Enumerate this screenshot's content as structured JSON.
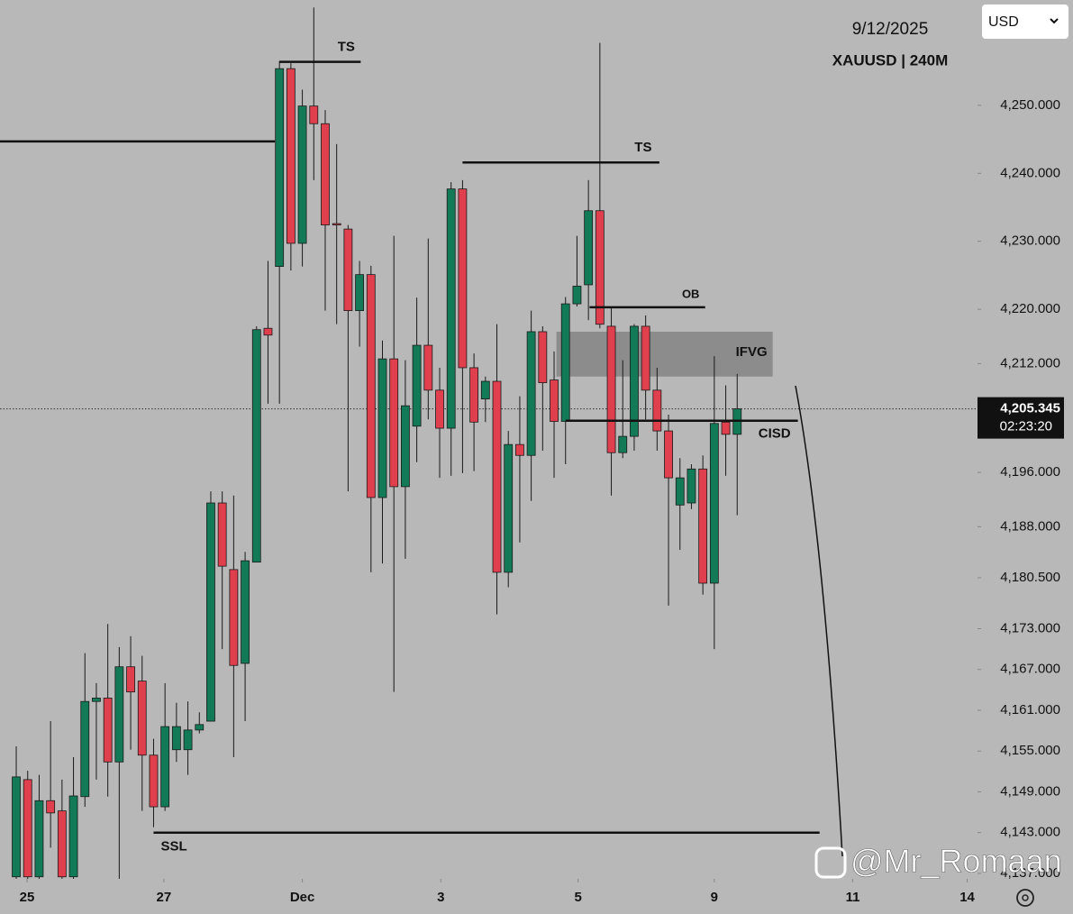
{
  "chart_data": {
    "type": "candlestick",
    "header_date": "9/12/2025",
    "symbol": "XAUUSD | 240M",
    "currency": "USD",
    "watermark": "@Mr_Romaan",
    "up_color": "#137a57",
    "down_color": "#e0404e",
    "open": [
      4136.5,
      4150.8,
      4136.5,
      4147.7,
      4146.2,
      4136.5,
      4148.3,
      4162.3,
      4162.8,
      4153.4,
      4167.4,
      4165.3,
      4154.4,
      4146.8,
      4155.2,
      4155.2,
      4158.1,
      4159.4,
      4191.5,
      4181.7,
      4167.9,
      4182.8,
      4217.2,
      4226.3,
      4255.4,
      4229.7,
      4249.9,
      4247.3,
      4232.6,
      4231.8,
      4219.8,
      4225.1,
      4192.3,
      4212.7,
      4193.9,
      4202.8,
      4214.7,
      4208.1,
      4202.5,
      4237.7,
      4211.4,
      4206.8,
      4209.4,
      4181.3,
      4200.1,
      4198.5,
      4216.7,
      4209.6,
      4203.5,
      4220.8,
      4223.6,
      4234.5,
      4217.5,
      4198.9,
      4201.3,
      4217.5,
      4208.1,
      4202.1,
      4191.2,
      4191.5,
      4196.5,
      4179.7,
      4203.4,
      4201.6
    ],
    "high": [
      4155.7,
      4152.1,
      4151.5,
      4159.4,
      4150.8,
      4154.1,
      4169.4,
      4165.0,
      4173.7,
      4170.3,
      4171.9,
      4169.0,
      4156.8,
      4165.0,
      4162.1,
      4162.3,
      4160.7,
      4193.2,
      4193.2,
      4192.6,
      4184.3,
      4217.5,
      4227.1,
      4256.5,
      4256.2,
      4252.3,
      4264.4,
      4249.3,
      4244.3,
      4232.4,
      4227.1,
      4226.4,
      4215.4,
      4230.8,
      4212.5,
      4221.7,
      4230.4,
      4211.4,
      4238.7,
      4239.0,
      4213.5,
      4210.1,
      4217.8,
      4202.1,
      4207.2,
      4219.8,
      4217.5,
      4213.8,
      4221.8,
      4230.8,
      4239.0,
      4259.2,
      4220.2,
      4212.5,
      4217.8,
      4219.1,
      4211.4,
      4204.5,
      4198.1,
      4197.2,
      4198.5,
      4213.1,
      4208.8,
      4210.5
    ],
    "low": [
      4136.2,
      4136.2,
      4136.2,
      4140.8,
      4136.2,
      4136.2,
      4146.8,
      4150.8,
      4148.3,
      4136.2,
      4155.2,
      4146.2,
      4143.8,
      4146.2,
      4153.4,
      4151.5,
      4157.6,
      4159.4,
      4170.0,
      4154.1,
      4159.4,
      4182.8,
      4206.1,
      4206.1,
      4225.7,
      4226.3,
      4239.0,
      4219.8,
      4217.8,
      4193.2,
      4214.5,
      4181.3,
      4182.6,
      4163.7,
      4183.3,
      4197.5,
      4203.8,
      4195.2,
      4195.5,
      4195.9,
      4196.2,
      4203.4,
      4175.1,
      4179.1,
      4185.7,
      4191.8,
      4199.2,
      4195.2,
      4197.2,
      4220.4,
      4218.4,
      4217.2,
      4192.6,
      4198.1,
      4199.2,
      4203.8,
      4199.2,
      4176.4,
      4184.6,
      4190.6,
      4178.0,
      4170.0,
      4195.5,
      4189.7
    ],
    "close": [
      4151.2,
      4136.5,
      4147.7,
      4145.9,
      4136.5,
      4148.4,
      4162.3,
      4162.8,
      4153.4,
      4167.4,
      4163.7,
      4154.4,
      4146.8,
      4158.6,
      4158.6,
      4158.1,
      4158.9,
      4191.5,
      4182.2,
      4167.6,
      4183.0,
      4217.0,
      4216.2,
      4255.4,
      4229.7,
      4249.9,
      4247.3,
      4232.4,
      4232.4,
      4219.8,
      4225.1,
      4192.3,
      4212.7,
      4193.9,
      4205.8,
      4214.7,
      4208.1,
      4202.5,
      4237.7,
      4211.4,
      4203.4,
      4209.4,
      4181.3,
      4200.1,
      4198.5,
      4216.7,
      4209.2,
      4203.5,
      4220.8,
      4223.4,
      4234.5,
      4217.8,
      4198.9,
      4201.3,
      4217.5,
      4208.1,
      4202.1,
      4195.2,
      4195.2,
      4196.5,
      4179.7,
      4203.2,
      4201.6,
      4205.345
    ],
    "xlim": [
      -1.42,
      84.0
    ],
    "xticks": [
      {
        "value": 0.94,
        "label": "25"
      },
      {
        "value": 12.9,
        "label": "27"
      },
      {
        "value": 25.0,
        "label": "Dec"
      },
      {
        "value": 37.1,
        "label": "3"
      },
      {
        "value": 49.1,
        "label": "5"
      },
      {
        "value": 61.0,
        "label": "9"
      },
      {
        "value": 73.1,
        "label": "11"
      },
      {
        "value": 83.1,
        "label": "14"
      }
    ],
    "ylim": [
      4136.2,
      4265.5
    ],
    "yticks": [
      {
        "value": 4250,
        "label": "4,250.000"
      },
      {
        "value": 4240,
        "label": "4,240.000"
      },
      {
        "value": 4230,
        "label": "4,230.000"
      },
      {
        "value": 4220,
        "label": "4,220.000"
      },
      {
        "value": 4212,
        "label": "4,212.000"
      },
      {
        "value": 4196,
        "label": "4,196.000"
      },
      {
        "value": 4188,
        "label": "4,188.000"
      },
      {
        "value": 4180.5,
        "label": "4,180.500"
      },
      {
        "value": 4173,
        "label": "4,173.000"
      },
      {
        "value": 4167,
        "label": "4,167.000"
      },
      {
        "value": 4161,
        "label": "4,161.000"
      },
      {
        "value": 4155,
        "label": "4,155.000"
      },
      {
        "value": 4149,
        "label": "4,149.000"
      },
      {
        "value": 4143,
        "label": "4,143.000"
      },
      {
        "value": 4137,
        "label": "4,137.000"
      }
    ],
    "last_price": {
      "value": 4205.345,
      "label": "4,205.345"
    },
    "countdown": "02:23:20",
    "levels": [
      {
        "price": 4244.7,
        "x0": -1.42,
        "x1": 22.6
      },
      {
        "label": "TS",
        "price": 4256.4,
        "x0": 23.0,
        "x1": 30.1
      },
      {
        "label": "TS",
        "price": 4241.6,
        "x0": 39.0,
        "x1": 56.2
      },
      {
        "label": "OB",
        "price": 4220.3,
        "x0": 50.1,
        "x1": 60.2
      },
      {
        "label": "CISD",
        "price": 4203.6,
        "x0": 48.0,
        "x1": 68.3
      },
      {
        "label": "SSL",
        "price": 4143.0,
        "x0": 12.0,
        "x1": 70.2
      }
    ],
    "zone": {
      "label": "IFVG",
      "top": 4216.7,
      "bottom": 4210.1,
      "x0": 47.2,
      "x1": 66.1
    }
  }
}
